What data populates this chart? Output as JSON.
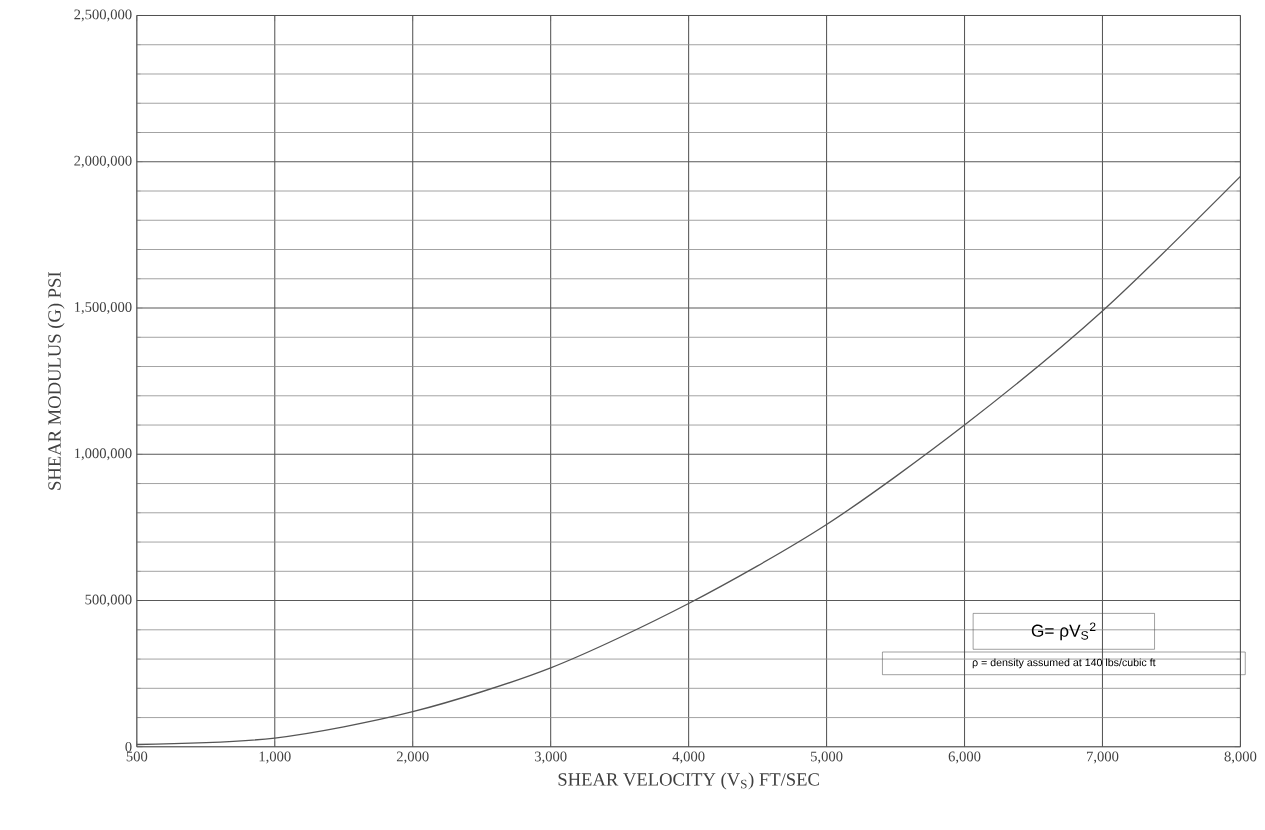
{
  "chart_data": {
    "type": "line",
    "xlabel": "SHEAR VELOCITY (V$_{S}$) FT/SEC",
    "ylabel": "SHEAR MODULUS (G) PSI",
    "categories": [
      "500",
      "1,000",
      "2,000",
      "3,000",
      "4,000",
      "5,000",
      "6,000",
      "7,000",
      "8,000"
    ],
    "series": [
      {
        "color": "#555555",
        "values": [
          8000,
          30000,
          120000,
          270000,
          490000,
          760000,
          1100000,
          1490000,
          1950000
        ]
      }
    ],
    "ylim": [
      0,
      2500000
    ],
    "yticks": [
      {
        "value": 0,
        "label": "0"
      },
      {
        "value": 500000,
        "label": "500,000"
      },
      {
        "value": 1000000,
        "label": "1,000,000"
      },
      {
        "value": 1500000,
        "label": "1,500,000"
      },
      {
        "value": 2000000,
        "label": "2,000,000"
      },
      {
        "value": 2500000,
        "label": "2,500,000"
      }
    ],
    "grid": true,
    "marker": "none",
    "line_style": "solid",
    "annotations": [
      "G= ρV$_{S}$$^{2}$",
      "ρ = density assumed at 140 lbs/cubic ft"
    ]
  }
}
